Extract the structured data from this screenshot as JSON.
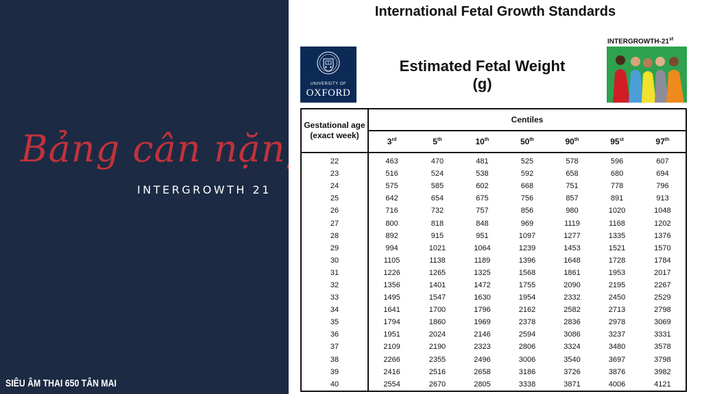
{
  "left": {
    "script_title": "Bảng cân nặng",
    "subtitle": "INTERGROWTH 21",
    "footer": "SIÊU ÂM THAI 650 TÂN MAI"
  },
  "header": {
    "title": "International Fetal Growth Standards",
    "chart_title_line1": "Estimated Fetal Weight",
    "chart_title_line2": "(g)",
    "oxford_small": "UNIVERSITY OF",
    "oxford_big": "OXFORD",
    "ig_label": "INTERGROWTH-21",
    "ig_label_sup": "st"
  },
  "table": {
    "age_header": "Gestational age (exact week)",
    "centiles_header": "Centiles",
    "centiles": [
      {
        "num": "3",
        "sup": "rd"
      },
      {
        "num": "5",
        "sup": "th"
      },
      {
        "num": "10",
        "sup": "th"
      },
      {
        "num": "50",
        "sup": "th"
      },
      {
        "num": "90",
        "sup": "th"
      },
      {
        "num": "95",
        "sup": "st"
      },
      {
        "num": "97",
        "sup": "th"
      }
    ],
    "rows": [
      [
        "22",
        "463",
        "470",
        "481",
        "525",
        "578",
        "596",
        "607"
      ],
      [
        "23",
        "516",
        "524",
        "538",
        "592",
        "658",
        "680",
        "694"
      ],
      [
        "24",
        "575",
        "585",
        "602",
        "668",
        "751",
        "778",
        "796"
      ],
      [
        "25",
        "642",
        "654",
        "675",
        "756",
        "857",
        "891",
        "913"
      ],
      [
        "26",
        "716",
        "732",
        "757",
        "856",
        "980",
        "1020",
        "1048"
      ],
      [
        "27",
        "800",
        "818",
        "848",
        "969",
        "1119",
        "1168",
        "1202"
      ],
      [
        "28",
        "892",
        "915",
        "951",
        "1097",
        "1277",
        "1335",
        "1376"
      ],
      [
        "29",
        "994",
        "1021",
        "1064",
        "1239",
        "1453",
        "1521",
        "1570"
      ],
      [
        "30",
        "1105",
        "1138",
        "1189",
        "1396",
        "1648",
        "1728",
        "1784"
      ],
      [
        "31",
        "1226",
        "1265",
        "1325",
        "1568",
        "1861",
        "1953",
        "2017"
      ],
      [
        "32",
        "1356",
        "1401",
        "1472",
        "1755",
        "2090",
        "2195",
        "2267"
      ],
      [
        "33",
        "1495",
        "1547",
        "1630",
        "1954",
        "2332",
        "2450",
        "2529"
      ],
      [
        "34",
        "1641",
        "1700",
        "1796",
        "2162",
        "2582",
        "2713",
        "2798"
      ],
      [
        "35",
        "1794",
        "1860",
        "1969",
        "2378",
        "2836",
        "2978",
        "3069"
      ],
      [
        "36",
        "1951",
        "2024",
        "2146",
        "2594",
        "3086",
        "3237",
        "3331"
      ],
      [
        "37",
        "2109",
        "2190",
        "2323",
        "2806",
        "3324",
        "3480",
        "3578"
      ],
      [
        "38",
        "2266",
        "2355",
        "2496",
        "3006",
        "3540",
        "3697",
        "3798"
      ],
      [
        "39",
        "2416",
        "2516",
        "2658",
        "3186",
        "3726",
        "3876",
        "3982"
      ],
      [
        "40",
        "2554",
        "2670",
        "2805",
        "3338",
        "3871",
        "4006",
        "4121"
      ]
    ]
  },
  "colors": {
    "panel_bg": "#1c2a43",
    "script_red": "#c0323c",
    "oxford_blue": "#0b2a56"
  }
}
